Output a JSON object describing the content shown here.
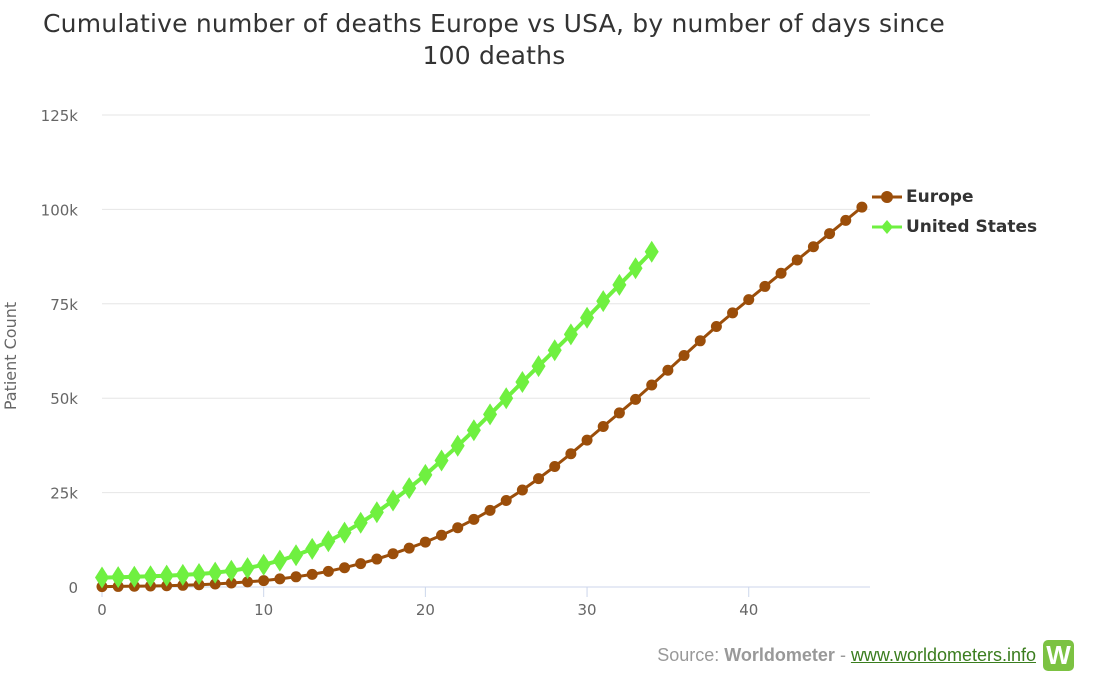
{
  "chart_data": {
    "type": "line",
    "title_line1": "Cumulative number of deaths Europe vs USA, by number of days since",
    "title_line2": "100 deaths",
    "xlabel": "",
    "ylabel": "Patient Count",
    "xlim": [
      0,
      47.5
    ],
    "ylim": [
      0,
      125000
    ],
    "x_ticks": [
      0,
      10,
      20,
      30,
      40
    ],
    "y_ticks": [
      0,
      25000,
      50000,
      75000,
      100000,
      125000
    ],
    "y_tick_labels": [
      "0",
      "25k",
      "50k",
      "75k",
      "100k",
      "125k"
    ],
    "grid": true,
    "legend_position": "right",
    "series": [
      {
        "name": "Europe",
        "color": "#9b4e0a",
        "marker": "circle",
        "x": [
          0,
          1,
          2,
          3,
          4,
          5,
          6,
          7,
          8,
          9,
          10,
          11,
          12,
          13,
          14,
          15,
          16,
          17,
          18,
          19,
          20,
          21,
          22,
          23,
          24,
          25,
          26,
          27,
          28,
          29,
          30,
          31,
          32,
          33,
          34,
          35,
          36,
          37,
          38,
          39,
          40,
          41,
          42,
          43,
          44,
          45,
          46,
          47
        ],
        "values": [
          100,
          150,
          200,
          260,
          340,
          450,
          600,
          800,
          1050,
          1350,
          1700,
          2150,
          2700,
          3350,
          4150,
          5100,
          6200,
          7400,
          8800,
          10300,
          11900,
          13700,
          15700,
          17900,
          20300,
          22900,
          25700,
          28700,
          31900,
          35300,
          38900,
          42500,
          46100,
          49700,
          53500,
          57400,
          61300,
          65200,
          69000,
          72600,
          76100,
          79600,
          83100,
          86600,
          90100,
          93600,
          97100,
          100600
        ]
      },
      {
        "name": "United States",
        "color": "#6ff040",
        "marker": "diamond",
        "x": [
          0,
          1,
          2,
          3,
          4,
          5,
          6,
          7,
          8,
          9,
          10,
          11,
          12,
          13,
          14,
          15,
          16,
          17,
          18,
          19,
          20,
          21,
          22,
          23,
          24,
          25,
          26,
          27,
          28,
          29,
          30,
          31,
          32,
          33,
          34
        ],
        "values": [
          2500,
          2600,
          2700,
          2850,
          3000,
          3200,
          3450,
          3800,
          4300,
          5000,
          5900,
          7000,
          8400,
          10100,
          12100,
          14400,
          17000,
          19800,
          22900,
          26200,
          29700,
          33500,
          37400,
          41500,
          45700,
          50000,
          54300,
          58500,
          62700,
          66900,
          71300,
          75700,
          80000,
          84400,
          88800
        ]
      }
    ]
  },
  "legend": {
    "items": [
      {
        "label": "Europe"
      },
      {
        "label": "United States"
      }
    ]
  },
  "source": {
    "prefix": "Source: ",
    "brand": "Worldometer",
    "separator": " - ",
    "link": "www.worldometers.info",
    "logo_letter": "W"
  }
}
